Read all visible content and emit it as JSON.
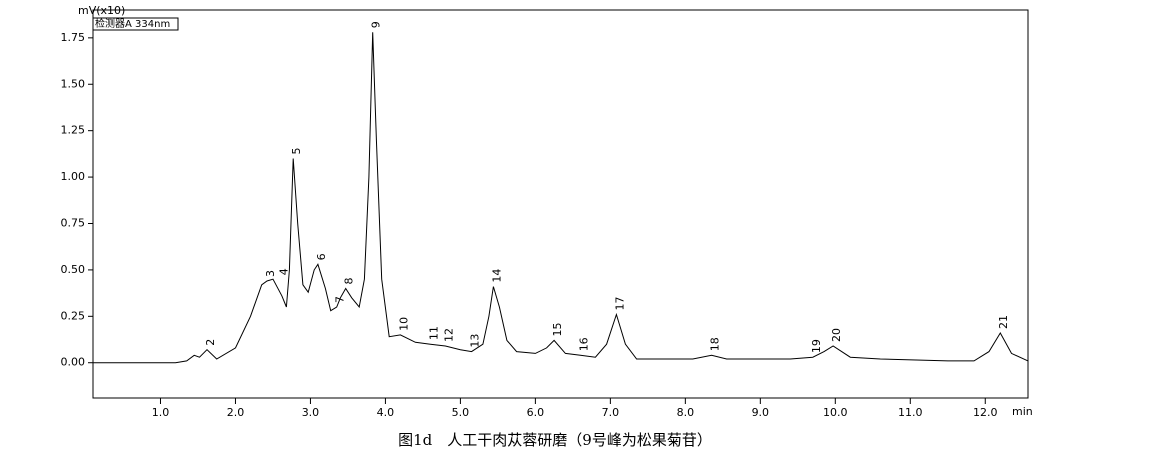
{
  "chart_data": {
    "type": "line",
    "y_label": "mV(x10)",
    "x_label": "min",
    "caption": "图1d　人工干肉苁蓉研磨（9号峰为松果菊苷）",
    "xlim": [
      0.1,
      12.57
    ],
    "ylim": [
      -0.19,
      1.9
    ],
    "xticks": [
      {
        "value": 1,
        "label": "1.0"
      },
      {
        "value": 2,
        "label": "2.0"
      },
      {
        "value": 3,
        "label": "3.0"
      },
      {
        "value": 4,
        "label": "4.0"
      },
      {
        "value": 5,
        "label": "5.0"
      },
      {
        "value": 6,
        "label": "6.0"
      },
      {
        "value": 7,
        "label": "7.0"
      },
      {
        "value": 8,
        "label": "8.0"
      },
      {
        "value": 9,
        "label": "9.0"
      },
      {
        "value": 10,
        "label": "10.0"
      },
      {
        "value": 11,
        "label": "11.0"
      },
      {
        "value": 12,
        "label": "12.0"
      }
    ],
    "yticks": [
      {
        "value": 0,
        "label": "0.00"
      },
      {
        "value": 0.25,
        "label": "0.25"
      },
      {
        "value": 0.5,
        "label": "0.50"
      },
      {
        "value": 0.75,
        "label": "0.75"
      },
      {
        "value": 1,
        "label": "1.00"
      },
      {
        "value": 1.25,
        "label": "1.25"
      },
      {
        "value": 1.5,
        "label": "1.50"
      },
      {
        "value": 1.75,
        "label": "1.75"
      }
    ],
    "x": [
      0.1,
      1.2,
      1.35,
      1.45,
      1.52,
      1.62,
      1.75,
      2.0,
      2.2,
      2.35,
      2.42,
      2.5,
      2.62,
      2.68,
      2.72,
      2.77,
      2.83,
      2.9,
      2.97,
      3.05,
      3.1,
      3.2,
      3.27,
      3.35,
      3.4,
      3.47,
      3.55,
      3.65,
      3.72,
      3.78,
      3.83,
      3.88,
      3.95,
      4.05,
      4.2,
      4.4,
      4.6,
      4.8,
      5.0,
      5.15,
      5.3,
      5.38,
      5.44,
      5.52,
      5.62,
      5.75,
      6.0,
      6.15,
      6.25,
      6.4,
      6.6,
      6.8,
      6.95,
      7.08,
      7.2,
      7.35,
      7.6,
      8.1,
      8.35,
      8.55,
      9.0,
      9.4,
      9.7,
      9.85,
      9.97,
      10.2,
      10.6,
      11.5,
      11.85,
      12.05,
      12.2,
      12.35,
      12.57
    ],
    "series": [
      {
        "name": "检测器A 334nm",
        "color": "#000000",
        "values": [
          0.0,
          0.0,
          0.01,
          0.04,
          0.03,
          0.07,
          0.02,
          0.08,
          0.25,
          0.42,
          0.44,
          0.45,
          0.36,
          0.3,
          0.5,
          1.1,
          0.75,
          0.42,
          0.38,
          0.5,
          0.53,
          0.4,
          0.28,
          0.3,
          0.35,
          0.4,
          0.35,
          0.3,
          0.45,
          1.0,
          1.78,
          1.2,
          0.45,
          0.14,
          0.15,
          0.11,
          0.1,
          0.09,
          0.07,
          0.06,
          0.1,
          0.25,
          0.41,
          0.3,
          0.12,
          0.06,
          0.05,
          0.08,
          0.12,
          0.05,
          0.04,
          0.03,
          0.1,
          0.26,
          0.1,
          0.02,
          0.02,
          0.02,
          0.04,
          0.02,
          0.02,
          0.02,
          0.03,
          0.06,
          0.09,
          0.03,
          0.02,
          0.01,
          0.01,
          0.06,
          0.16,
          0.05,
          0.01
        ]
      }
    ],
    "peaks": [
      {
        "label": "2",
        "x": 1.62,
        "y": 0.07
      },
      {
        "label": "3",
        "x": 2.42,
        "y": 0.44
      },
      {
        "label": "4",
        "x": 2.6,
        "y": 0.45
      },
      {
        "label": "5",
        "x": 2.77,
        "y": 1.1
      },
      {
        "label": "6",
        "x": 3.1,
        "y": 0.53
      },
      {
        "label": "7",
        "x": 3.35,
        "y": 0.3
      },
      {
        "label": "8",
        "x": 3.47,
        "y": 0.4
      },
      {
        "label": "9",
        "x": 3.83,
        "y": 1.78
      },
      {
        "label": "10",
        "x": 4.2,
        "y": 0.15
      },
      {
        "label": "11",
        "x": 4.6,
        "y": 0.1
      },
      {
        "label": "12",
        "x": 4.8,
        "y": 0.09
      },
      {
        "label": "13",
        "x": 5.15,
        "y": 0.06
      },
      {
        "label": "14",
        "x": 5.44,
        "y": 0.41
      },
      {
        "label": "15",
        "x": 6.25,
        "y": 0.12
      },
      {
        "label": "16",
        "x": 6.6,
        "y": 0.04
      },
      {
        "label": "17",
        "x": 7.08,
        "y": 0.26
      },
      {
        "label": "18",
        "x": 8.35,
        "y": 0.04
      },
      {
        "label": "19",
        "x": 9.7,
        "y": 0.03
      },
      {
        "label": "20",
        "x": 9.97,
        "y": 0.09
      },
      {
        "label": "21",
        "x": 12.2,
        "y": 0.16
      }
    ]
  }
}
